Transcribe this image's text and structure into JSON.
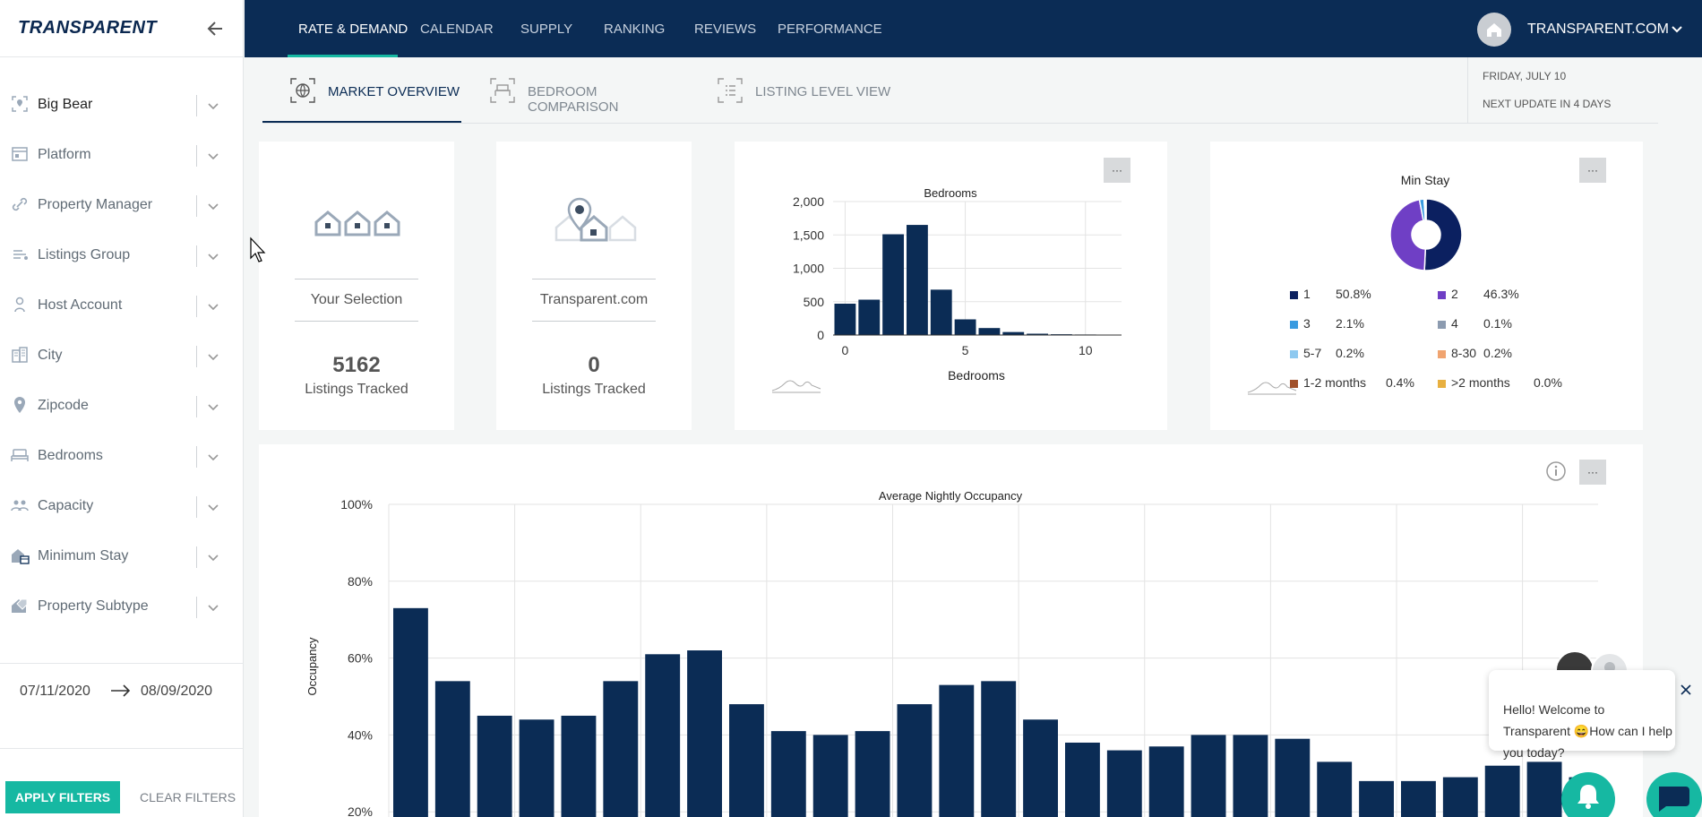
{
  "sidebar": {
    "logo": "TRANSPARENT",
    "filters": [
      {
        "label": "Big Bear",
        "icon": "location-scan-icon",
        "active": true
      },
      {
        "label": "Platform",
        "icon": "browser-icon"
      },
      {
        "label": "Property Manager",
        "icon": "link-icon"
      },
      {
        "label": "Listings Group",
        "icon": "list-icon"
      },
      {
        "label": "Host Account",
        "icon": "person-icon"
      },
      {
        "label": "City",
        "icon": "buildings-icon"
      },
      {
        "label": "Zipcode",
        "icon": "map-pin-icon"
      },
      {
        "label": "Bedrooms",
        "icon": "bed-icon"
      },
      {
        "label": "Capacity",
        "icon": "people-icon"
      },
      {
        "label": "Minimum Stay",
        "icon": "house-calendar-icon"
      },
      {
        "label": "Property Subtype",
        "icon": "house-tag-icon"
      }
    ],
    "date_from": "07/11/2020",
    "date_to": "08/09/2020",
    "apply_label": "APPLY FILTERS",
    "clear_label": "CLEAR FILTERS"
  },
  "topnav": {
    "items": [
      "RATE & DEMAND",
      "CALENDAR",
      "SUPPLY",
      "RANKING",
      "REVIEWS",
      "PERFORMANCE"
    ],
    "active_index": 0,
    "account": "TRANSPARENT.COM"
  },
  "subtabs": [
    {
      "label": "MARKET OVERVIEW",
      "icon": "globe-icon"
    },
    {
      "label": "BEDROOM COMPARISON",
      "icon": "bed-icon"
    },
    {
      "label": "LISTING LEVEL VIEW",
      "icon": "list-view-icon"
    }
  ],
  "date_info": {
    "date": "FRIDAY, JULY 10",
    "next_update": "NEXT UPDATE IN 4 DAYS"
  },
  "kpis": [
    {
      "label": "Your Selection",
      "value": "5162",
      "sub": "Listings Tracked"
    },
    {
      "label": "Transparent.com",
      "value": "0",
      "sub": "Listings Tracked"
    }
  ],
  "more_label": "···",
  "colors": {
    "nav": "#0b2c55",
    "accent": "#16b8a2",
    "bar": "#0b2c55"
  },
  "chart_data": [
    {
      "type": "bar",
      "title": "Bedrooms",
      "xlabel": "Bedrooms",
      "ylabel": "",
      "x": [
        0,
        1,
        2,
        3,
        4,
        5,
        6,
        7,
        8,
        9,
        10,
        11
      ],
      "values": [
        470,
        530,
        1510,
        1650,
        680,
        235,
        105,
        45,
        20,
        12,
        8,
        6
      ],
      "x_ticks": [
        "0",
        "5",
        "10"
      ],
      "y_ticks": [
        "0",
        "500",
        "1,000",
        "1,500",
        "2,000"
      ],
      "ylim": [
        0,
        2000
      ]
    },
    {
      "type": "pie",
      "title": "Min Stay",
      "donut": true,
      "slices": [
        {
          "name": "1",
          "value": 50.8,
          "color": "#0b2060",
          "label": "50.8%"
        },
        {
          "name": "2",
          "value": 46.3,
          "color": "#6f3fc5",
          "label": "46.3%"
        },
        {
          "name": "3",
          "value": 2.1,
          "color": "#3a9be0",
          "label": "2.1%"
        },
        {
          "name": "4",
          "value": 0.1,
          "color": "#8c9bb0",
          "label": "0.1%"
        },
        {
          "name": "5-7",
          "value": 0.2,
          "color": "#8ec9f0",
          "label": "0.2%"
        },
        {
          "name": "8-30",
          "value": 0.2,
          "color": "#f0a470",
          "label": "0.2%"
        },
        {
          "name": "1-2 months",
          "value": 0.4,
          "color": "#a0502a",
          "label": "0.4%"
        },
        {
          "name": ">2 months",
          "value": 0.0,
          "color": "#e8b040",
          "label": "0.0%"
        }
      ]
    },
    {
      "type": "bar",
      "title": "Average Nightly Occupancy",
      "ylabel": "Occupancy",
      "y_ticks": [
        "20%",
        "40%",
        "60%",
        "80%",
        "100%"
      ],
      "ylim": [
        0,
        100
      ],
      "values": [
        73,
        54,
        45,
        44,
        45,
        54,
        61,
        62,
        48,
        41,
        40,
        41,
        48,
        53,
        54,
        44,
        38,
        36,
        37,
        40,
        40,
        39,
        33,
        28,
        28,
        29,
        32,
        33,
        29
      ]
    }
  ],
  "chat": {
    "message": "Hello! Welcome to Transparent 😄How can I help you today?"
  }
}
